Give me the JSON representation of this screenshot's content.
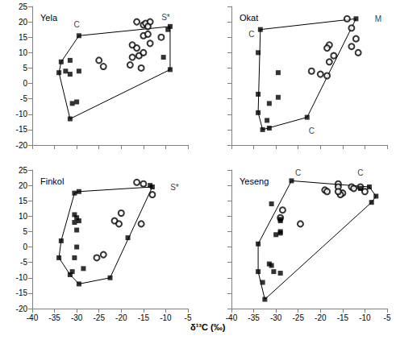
{
  "xlabel": "δ¹³C (‰)",
  "chart_data": [
    {
      "type": "scatter",
      "title": "Yela",
      "xlim": [
        -40,
        -5
      ],
      "ylim": [
        -20,
        25
      ],
      "xticks": [
        -40,
        -35,
        -30,
        -25,
        -20,
        -15,
        -10,
        -5
      ],
      "yticks": [
        -20,
        -15,
        -10,
        -5,
        0,
        5,
        10,
        15,
        20,
        25
      ],
      "tick_labels": "y",
      "grid": false,
      "series": [
        {
          "type": "line",
          "marker": "none",
          "line_style": "solid",
          "color": "#000000",
          "values": [
            [
              -29.5,
              15.5
            ],
            [
              -9,
              18.5
            ],
            [
              -9,
              4.5
            ],
            [
              -31.5,
              -11.5
            ],
            [
              -34,
              3.5
            ],
            [
              -33.5,
              7
            ]
          ]
        },
        {
          "type": "scatter",
          "marker": "square",
          "color": "#000000",
          "values": [
            [
              -29.5,
              15.5
            ],
            [
              -33.5,
              7
            ],
            [
              -34,
              3.5
            ],
            [
              -32.5,
              4
            ],
            [
              -31.5,
              7.5
            ],
            [
              -31.5,
              3
            ],
            [
              -29.5,
              4
            ],
            [
              -31,
              -6.5
            ],
            [
              -30,
              -6
            ],
            [
              -31.5,
              -11.5
            ],
            [
              -10.5,
              8.5
            ],
            [
              -9,
              4.5
            ],
            [
              -9.5,
              17.5
            ],
            [
              -9,
              18.5
            ]
          ]
        },
        {
          "type": "scatter",
          "marker": "open_circle",
          "color": "#000000",
          "values": [
            [
              -25,
              7.5
            ],
            [
              -24,
              5.5
            ],
            [
              -16.5,
              20
            ],
            [
              -15,
              19
            ],
            [
              -14.5,
              19.5
            ],
            [
              -13.5,
              20
            ],
            [
              -14,
              18.5
            ],
            [
              -15,
              15.5
            ],
            [
              -14,
              16
            ],
            [
              -13.5,
              13
            ],
            [
              -17.5,
              12.5
            ],
            [
              -16.5,
              11.5
            ],
            [
              -16,
              9
            ],
            [
              -17.5,
              8.5
            ],
            [
              -18,
              6
            ],
            [
              -15.5,
              5
            ],
            [
              -15,
              10
            ],
            [
              -11,
              15
            ]
          ]
        }
      ],
      "annotations": [
        {
          "text": "C",
          "x": -30,
          "y": 19
        },
        {
          "text": "S*",
          "x": -10,
          "y": 21.5
        }
      ]
    },
    {
      "type": "scatter",
      "title": "Okat",
      "xlim": [
        -40,
        -5
      ],
      "ylim": [
        -20,
        25
      ],
      "xticks": [
        -40,
        -35,
        -30,
        -25,
        -20,
        -15,
        -10,
        -5
      ],
      "yticks": [
        -20,
        -15,
        -10,
        -5,
        0,
        5,
        10,
        15,
        20,
        25
      ],
      "tick_labels": false,
      "grid": false,
      "series": [
        {
          "type": "line",
          "marker": "none",
          "line_style": "solid",
          "color": "#000000",
          "values": [
            [
              -33.5,
              17.5
            ],
            [
              -12,
              21
            ],
            [
              -23,
              -11
            ],
            [
              -33,
              -15
            ],
            [
              -34,
              -9.5
            ]
          ]
        },
        {
          "type": "scatter",
          "marker": "square",
          "color": "#000000",
          "values": [
            [
              -33.5,
              17.5
            ],
            [
              -34,
              10
            ],
            [
              -34,
              -3.5
            ],
            [
              -34,
              -9.5
            ],
            [
              -33,
              -15
            ],
            [
              -32,
              -12
            ],
            [
              -31.5,
              -14.5
            ],
            [
              -31.5,
              -6.5
            ],
            [
              -29.5,
              3.5
            ],
            [
              -29.5,
              -4.5
            ],
            [
              -23,
              -11
            ],
            [
              -12,
              21
            ]
          ]
        },
        {
          "type": "scatter",
          "marker": "open_circle",
          "color": "#000000",
          "values": [
            [
              -14,
              21
            ],
            [
              -13,
              18
            ],
            [
              -12,
              14.5
            ],
            [
              -13,
              12
            ],
            [
              -11.5,
              10
            ],
            [
              -18,
              12.5
            ],
            [
              -18.5,
              11.5
            ],
            [
              -17,
              9
            ],
            [
              -18,
              7
            ],
            [
              -22,
              4
            ],
            [
              -20,
              3
            ],
            [
              -18.5,
              2.5
            ]
          ]
        }
      ],
      "annotations": [
        {
          "text": "C",
          "x": -35.5,
          "y": 16
        },
        {
          "text": "M",
          "x": -7,
          "y": 21
        },
        {
          "text": "C",
          "x": -22,
          "y": -15.5
        }
      ]
    },
    {
      "type": "scatter",
      "title": "Finkol",
      "xlim": [
        -40,
        -5
      ],
      "ylim": [
        -20,
        25
      ],
      "xticks": [
        -40,
        -35,
        -30,
        -25,
        -20,
        -15,
        -10,
        -5
      ],
      "yticks": [
        -20,
        -15,
        -10,
        -5,
        0,
        5,
        10,
        15,
        20,
        25
      ],
      "tick_labels": true,
      "grid": false,
      "series": [
        {
          "type": "line",
          "marker": "none",
          "line_style": "solid",
          "color": "#000000",
          "values": [
            [
              -30.5,
              17.5
            ],
            [
              -29.5,
              18
            ],
            [
              -13,
              19.5
            ],
            [
              -22.5,
              -10
            ],
            [
              -29.5,
              -12
            ],
            [
              -31.5,
              -9
            ],
            [
              -34,
              -3.5
            ],
            [
              -33.5,
              2
            ]
          ]
        },
        {
          "type": "scatter",
          "marker": "square",
          "color": "#000000",
          "values": [
            [
              -30.5,
              17.5
            ],
            [
              -29.5,
              18
            ],
            [
              -30.5,
              10.5
            ],
            [
              -30,
              9.5
            ],
            [
              -29.5,
              8.5
            ],
            [
              -30.5,
              8
            ],
            [
              -30,
              5.5
            ],
            [
              -33.5,
              2
            ],
            [
              -34,
              -3.5
            ],
            [
              -30,
              0
            ],
            [
              -30.5,
              -3.5
            ],
            [
              -31,
              -8
            ],
            [
              -31.5,
              -9
            ],
            [
              -29.5,
              -12
            ],
            [
              -28.5,
              -7
            ],
            [
              -22.5,
              -10
            ],
            [
              -18.5,
              3
            ],
            [
              -13,
              19.5
            ],
            [
              -13.5,
              20
            ]
          ]
        },
        {
          "type": "scatter",
          "marker": "open_circle",
          "color": "#000000",
          "values": [
            [
              -16.5,
              21
            ],
            [
              -15,
              20.5
            ],
            [
              -13,
              17
            ],
            [
              -21.5,
              8.5
            ],
            [
              -20.5,
              7.5
            ],
            [
              -20,
              11
            ],
            [
              -15.5,
              7.5
            ],
            [
              -24,
              -2.5
            ],
            [
              -25.5,
              -3.5
            ]
          ]
        }
      ],
      "annotations": [
        {
          "text": "S*",
          "x": -8,
          "y": 19.5
        }
      ]
    },
    {
      "type": "scatter",
      "title": "Yeseng",
      "xlim": [
        -40,
        -5
      ],
      "ylim": [
        -20,
        25
      ],
      "xticks": [
        -40,
        -35,
        -30,
        -25,
        -20,
        -15,
        -10,
        -5
      ],
      "yticks": [
        -20,
        -15,
        -10,
        -5,
        0,
        5,
        10,
        15,
        20,
        25
      ],
      "tick_labels": "x",
      "grid": false,
      "series": [
        {
          "type": "line",
          "marker": "none",
          "line_style": "solid",
          "color": "#000000",
          "values": [
            [
              -26.5,
              21.5
            ],
            [
              -9,
              19.5
            ],
            [
              -7.5,
              16.5
            ],
            [
              -8.5,
              14.5
            ],
            [
              -32.5,
              -17
            ],
            [
              -34,
              -8
            ],
            [
              -34,
              1
            ]
          ]
        },
        {
          "type": "scatter",
          "marker": "square",
          "color": "#000000",
          "values": [
            [
              -26.5,
              21.5
            ],
            [
              -31,
              14
            ],
            [
              -29,
              9
            ],
            [
              -29,
              8.5
            ],
            [
              -29,
              5
            ],
            [
              -29,
              4.5
            ],
            [
              -30,
              4
            ],
            [
              -34,
              1
            ],
            [
              -31,
              -6
            ],
            [
              -30.5,
              -8
            ],
            [
              -29,
              -8.5
            ],
            [
              -31.5,
              -5.5
            ],
            [
              -34,
              -8
            ],
            [
              -33,
              -11.5
            ],
            [
              -32.5,
              -17
            ],
            [
              -9,
              19.5
            ],
            [
              -8.5,
              14.5
            ],
            [
              -7.5,
              16.5
            ],
            [
              -11,
              19
            ]
          ]
        },
        {
          "type": "scatter",
          "marker": "open_circle",
          "color": "#000000",
          "values": [
            [
              -19,
              18.5
            ],
            [
              -16,
              20.5
            ],
            [
              -16,
              19.5
            ],
            [
              -13,
              19.5
            ],
            [
              -12.5,
              19
            ],
            [
              -11,
              19.5
            ],
            [
              -10,
              18
            ],
            [
              -15,
              17.5
            ],
            [
              -15.5,
              17
            ],
            [
              -18.5,
              18
            ],
            [
              -16,
              18
            ],
            [
              -28.5,
              12
            ],
            [
              -29,
              9.5
            ],
            [
              -24.5,
              7.5
            ]
          ]
        }
      ],
      "annotations": [
        {
          "text": "C",
          "x": -25,
          "y": 24
        },
        {
          "text": "C",
          "x": -11,
          "y": 24
        }
      ]
    }
  ]
}
